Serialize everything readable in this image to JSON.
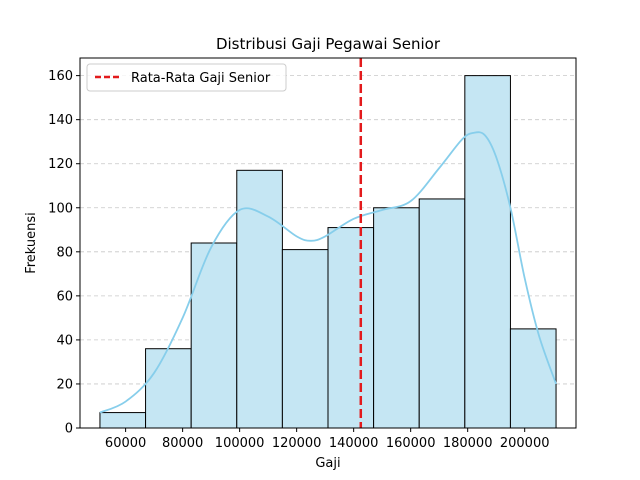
{
  "chart_data": {
    "type": "bar",
    "subtype": "histogram",
    "title": "Distribusi Gaji Pegawai Senior",
    "xlabel": "Gaji",
    "ylabel": "Frekuensi",
    "xlim": [
      44000,
      218000
    ],
    "ylim": [
      0,
      168
    ],
    "xticks": [
      60000,
      80000,
      100000,
      120000,
      140000,
      160000,
      180000,
      200000
    ],
    "yticks": [
      0,
      20,
      40,
      60,
      80,
      100,
      120,
      140,
      160
    ],
    "grid": {
      "y": true,
      "x": false,
      "style": "dashed"
    },
    "bins": [
      {
        "start": 51000,
        "end": 67000,
        "count": 7
      },
      {
        "start": 67000,
        "end": 83000,
        "count": 36
      },
      {
        "start": 83000,
        "end": 99000,
        "count": 84
      },
      {
        "start": 99000,
        "end": 115000,
        "count": 117
      },
      {
        "start": 115000,
        "end": 131000,
        "count": 81
      },
      {
        "start": 131000,
        "end": 147000,
        "count": 91
      },
      {
        "start": 147000,
        "end": 163000,
        "count": 100
      },
      {
        "start": 163000,
        "end": 179000,
        "count": 104
      },
      {
        "start": 179000,
        "end": 195000,
        "count": 160
      },
      {
        "start": 195000,
        "end": 211000,
        "count": 45
      }
    ],
    "kde": {
      "x": [
        51000,
        60000,
        70000,
        80000,
        90000,
        100000,
        110000,
        120000,
        125000,
        130000,
        140000,
        150000,
        160000,
        170000,
        178000,
        182000,
        186000,
        190000,
        195000,
        200000,
        205000,
        211000
      ],
      "y": [
        7,
        12,
        25,
        50,
        82,
        99,
        96,
        87,
        85,
        87,
        95,
        99,
        103,
        118,
        131,
        134,
        133,
        123,
        100,
        68,
        42,
        20
      ],
      "color": "#87ceeb"
    },
    "mean_line": {
      "x": 142500,
      "label": "Rata-Rata Gaji Senior",
      "color": "#e31a1c",
      "style": "dashed"
    },
    "legend": {
      "position": "top-left",
      "entries": [
        "Rata-Rata Gaji Senior"
      ]
    },
    "colors": {
      "bar_fill": "#c5e6f3",
      "bar_edge": "#000000"
    }
  }
}
